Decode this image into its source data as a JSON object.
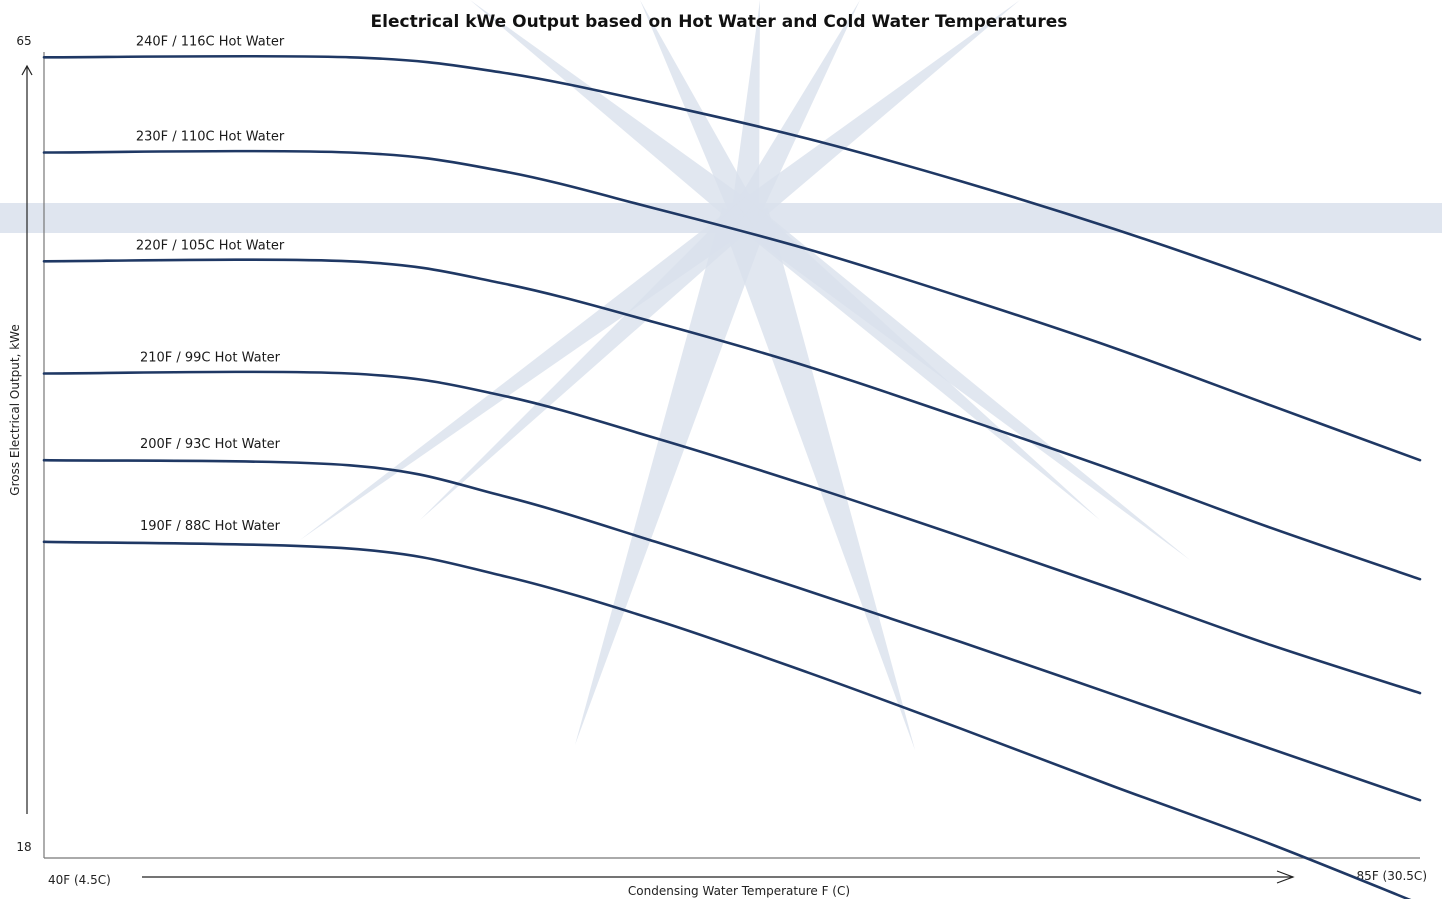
{
  "colors": {
    "series": "#1f3864",
    "watermark": "#d9e1ec"
  },
  "chart_data": {
    "type": "line",
    "title": "Electrical kWe Output based on  Hot Water and Cold Water Temperatures",
    "xlabel": "Condensing Water Temperature F (C)",
    "ylabel": "Gross Electrical Output, kWe",
    "x_tick_labels": [
      "40F (4.5C)",
      "85F (30.5C)"
    ],
    "y_tick_labels": [
      "18",
      "65"
    ],
    "xlim": [
      40,
      85
    ],
    "ylim": [
      18,
      65
    ],
    "grid": false,
    "legend": "inline-labels",
    "series": [
      {
        "name": "240F / 116C Hot Water",
        "x": [
          40,
          50,
          55,
          60,
          65,
          70,
          75,
          80,
          85
        ],
        "y": [
          65.1,
          65.1,
          64.2,
          62.4,
          60.3,
          57.8,
          55.0,
          51.9,
          48.5
        ]
      },
      {
        "name": "230F / 110C Hot Water",
        "x": [
          40,
          50,
          55,
          60,
          65,
          70,
          75,
          80,
          85
        ],
        "y": [
          59.5,
          59.5,
          58.4,
          56.2,
          53.8,
          51.0,
          48.0,
          44.7,
          41.4
        ]
      },
      {
        "name": "220F / 105C Hot Water",
        "x": [
          40,
          50,
          55,
          60,
          65,
          70,
          75,
          80,
          85
        ],
        "y": [
          53.1,
          53.1,
          51.8,
          49.5,
          46.9,
          43.9,
          40.8,
          37.5,
          34.4
        ]
      },
      {
        "name": "210F / 99C Hot Water",
        "x": [
          40,
          50,
          55,
          60,
          65,
          70,
          75,
          80,
          85
        ],
        "y": [
          46.5,
          46.5,
          45.2,
          42.7,
          39.9,
          36.9,
          33.8,
          30.6,
          27.7
        ]
      },
      {
        "name": "200F /  93C Hot Water",
        "x": [
          40,
          50,
          55,
          60,
          65,
          70,
          75,
          80,
          85
        ],
        "y": [
          41.4,
          41.1,
          39.3,
          36.6,
          33.7,
          30.7,
          27.6,
          24.5,
          21.4
        ]
      },
      {
        "name": "190F / 88C Hot Water",
        "x": [
          40,
          50,
          55,
          60,
          65,
          70,
          75,
          80,
          85
        ],
        "y": [
          36.6,
          36.2,
          34.6,
          32.0,
          28.9,
          25.6,
          22.2,
          18.9,
          15.3
        ]
      }
    ]
  }
}
